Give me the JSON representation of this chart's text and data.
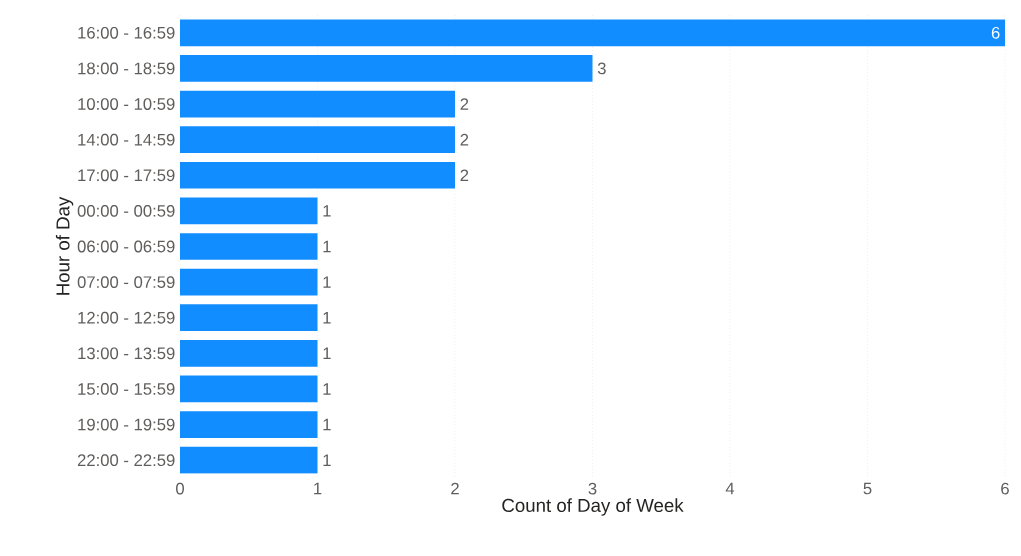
{
  "chart_data": {
    "type": "bar",
    "orientation": "horizontal",
    "xlabel": "Count of Day of Week",
    "ylabel": "Hour of Day",
    "categories": [
      "16:00 - 16:59",
      "18:00 - 18:59",
      "10:00 - 10:59",
      "14:00 - 14:59",
      "17:00 - 17:59",
      "00:00 - 00:59",
      "06:00 - 06:59",
      "07:00 - 07:59",
      "12:00 - 12:59",
      "13:00 - 13:59",
      "15:00 - 15:59",
      "19:00 - 19:59",
      "22:00 - 22:59"
    ],
    "values": [
      6,
      3,
      2,
      2,
      2,
      1,
      1,
      1,
      1,
      1,
      1,
      1,
      1
    ],
    "color": "#118dff",
    "xlim": [
      0,
      6
    ],
    "xticks": [
      0,
      1,
      2,
      3,
      4,
      5,
      6
    ],
    "grid": "x",
    "data_labels": true
  }
}
